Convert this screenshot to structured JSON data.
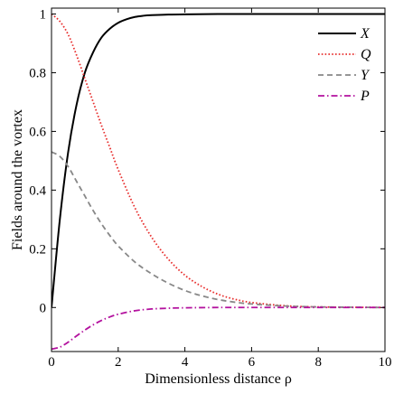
{
  "chart_data": {
    "type": "line",
    "xlabel": "Dimensionless distance ρ",
    "ylabel": "Fields around the vortex",
    "xlim": [
      0,
      10
    ],
    "ylim": [
      -0.15,
      1.02
    ],
    "x_ticks": [
      0,
      2,
      4,
      6,
      8,
      10
    ],
    "y_ticks": [
      0,
      0.2,
      0.4,
      0.6,
      0.8,
      1
    ],
    "x_tick_labels": [
      "0",
      "2",
      "4",
      "6",
      "8",
      "10"
    ],
    "y_tick_labels": [
      "0",
      "0.2",
      "0.4",
      "0.6",
      "0.8",
      "1"
    ],
    "grid": false,
    "legend_position": "top-right",
    "series": [
      {
        "name": "X",
        "color": "#000000",
        "dash": "solid",
        "x": [
          0,
          0.25,
          0.5,
          0.75,
          1.0,
          1.25,
          1.5,
          1.75,
          2.0,
          2.25,
          2.5,
          2.75,
          3.0,
          3.5,
          4.0,
          5.0,
          6.0,
          8.0,
          10.0
        ],
        "y": [
          0.0,
          0.3,
          0.53,
          0.69,
          0.8,
          0.87,
          0.92,
          0.95,
          0.97,
          0.982,
          0.99,
          0.994,
          0.996,
          0.998,
          0.999,
          1.0,
          1.0,
          1.0,
          1.0
        ]
      },
      {
        "name": "Q",
        "color": "#e8302f",
        "dash": "dotted",
        "x": [
          0,
          0.25,
          0.5,
          0.75,
          1.0,
          1.25,
          1.5,
          1.75,
          2.0,
          2.5,
          3.0,
          3.5,
          4.0,
          4.5,
          5.0,
          5.5,
          6.0,
          7.0,
          8.0,
          10.0
        ],
        "y": [
          1.0,
          0.975,
          0.93,
          0.86,
          0.78,
          0.7,
          0.62,
          0.545,
          0.47,
          0.34,
          0.24,
          0.165,
          0.11,
          0.072,
          0.045,
          0.028,
          0.017,
          0.006,
          0.002,
          0.0
        ]
      },
      {
        "name": "Y",
        "color": "#888888",
        "dash": "dashed",
        "x": [
          0,
          0.25,
          0.5,
          0.75,
          1.0,
          1.25,
          1.5,
          1.75,
          2.0,
          2.5,
          3.0,
          3.5,
          4.0,
          4.5,
          5.0,
          5.5,
          6.0,
          7.0,
          8.0,
          10.0
        ],
        "y": [
          0.53,
          0.515,
          0.48,
          0.43,
          0.38,
          0.33,
          0.285,
          0.245,
          0.21,
          0.155,
          0.115,
          0.083,
          0.058,
          0.04,
          0.027,
          0.018,
          0.012,
          0.005,
          0.002,
          0.0
        ]
      },
      {
        "name": "P",
        "color": "#b3119e",
        "dash": "dashdot",
        "x": [
          0,
          0.25,
          0.5,
          0.75,
          1.0,
          1.25,
          1.5,
          1.75,
          2.0,
          2.5,
          3.0,
          3.5,
          4.0,
          5.0,
          6.0,
          8.0,
          10.0
        ],
        "y": [
          -0.142,
          -0.135,
          -0.118,
          -0.097,
          -0.077,
          -0.059,
          -0.044,
          -0.032,
          -0.023,
          -0.011,
          -0.005,
          -0.0025,
          -0.001,
          0.0,
          0.0,
          0.0,
          0.0
        ]
      }
    ]
  }
}
